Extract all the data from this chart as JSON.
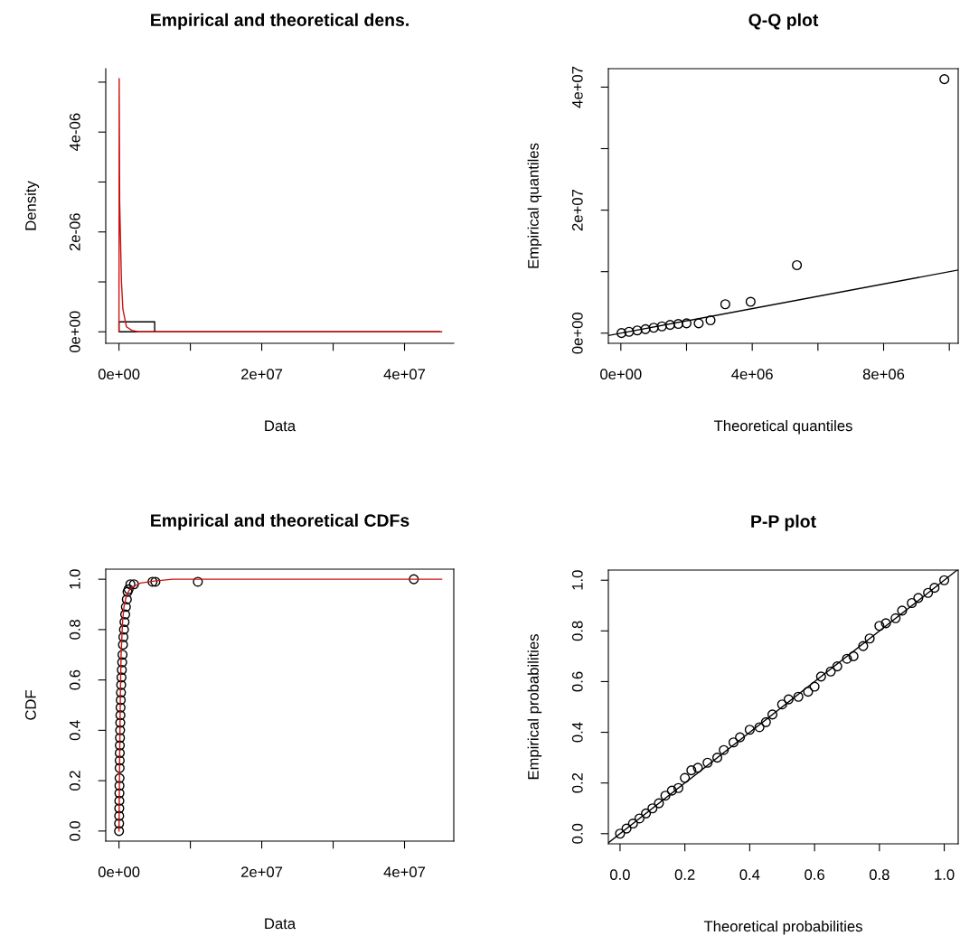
{
  "chart_data": [
    {
      "type": "histogram",
      "title": "Empirical and theoretical dens.",
      "xlabel": "Data",
      "ylabel": "Density",
      "bins": [
        0,
        5000000,
        10000000,
        15000000,
        20000000,
        25000000,
        30000000,
        35000000,
        40000000,
        45000000
      ],
      "values": [
        2e-07,
        0,
        0,
        0,
        0,
        0,
        0,
        0,
        0
      ],
      "color": "#000000",
      "series": [
        {
          "type": "line",
          "color": "#cc1111",
          "x": [
            0,
            30000,
            100000,
            350000,
            550000,
            1050000,
            1800000,
            2700000,
            45200000
          ],
          "values": [
            0,
            5.07e-06,
            2.6e-06,
            1e-06,
            4.5e-07,
            1e-07,
            3e-08,
            0,
            0
          ]
        }
      ],
      "xlim": [
        -1850000,
        46900000
      ],
      "ylim": [
        -2.3e-07,
        5.27e-06
      ],
      "xticks": [
        {
          "value": 0,
          "label": "0e+00"
        },
        {
          "value": 10000000,
          "label": null
        },
        {
          "value": 20000000,
          "label": "2e+07"
        },
        {
          "value": 30000000,
          "label": null
        },
        {
          "value": 40000000,
          "label": "4e+07"
        }
      ],
      "yticks": [
        {
          "value": 0,
          "label": "0e+00"
        },
        {
          "value": 1e-06,
          "label": null
        },
        {
          "value": 2e-06,
          "label": "2e-06"
        },
        {
          "value": 3e-06,
          "label": null
        },
        {
          "value": 4e-06,
          "label": "4e-06"
        },
        {
          "value": 5e-06,
          "label": null
        }
      ]
    },
    {
      "type": "scatter",
      "title": "Q-Q plot",
      "xlabel": "Theoretical quantiles",
      "ylabel": "Empirical quantiles",
      "series": [
        {
          "type": "scatter",
          "marker": "circle",
          "color": "#000000",
          "x": [
            20000,
            250000,
            500000,
            750000,
            1000000,
            1250000,
            1500000,
            1750000,
            2000000,
            2370000,
            2730000,
            3180000,
            3950000,
            5360000,
            9850000
          ],
          "values": [
            20000,
            220000,
            450000,
            650000,
            880000,
            1100000,
            1350000,
            1500000,
            1600000,
            1600000,
            2100000,
            4700000,
            5100000,
            11050000,
            41300000
          ]
        },
        {
          "type": "line",
          "color": "#000000",
          "x": [
            -380000,
            10270000
          ],
          "values": [
            -380000,
            10270000
          ]
        }
      ],
      "xlim": [
        -380000,
        10270000
      ],
      "ylim": [
        -1650000,
        43000000
      ],
      "xticks": [
        {
          "value": 0,
          "label": "0e+00"
        },
        {
          "value": 2000000,
          "label": null
        },
        {
          "value": 4000000,
          "label": "4e+06"
        },
        {
          "value": 6000000,
          "label": null
        },
        {
          "value": 8000000,
          "label": "8e+06"
        },
        {
          "value": 10000000,
          "label": null
        }
      ],
      "yticks": [
        {
          "value": 0,
          "label": "0e+00"
        },
        {
          "value": 10000000,
          "label": null
        },
        {
          "value": 20000000,
          "label": "2e+07"
        },
        {
          "value": 30000000,
          "label": null
        },
        {
          "value": 40000000,
          "label": "4e+07"
        }
      ]
    },
    {
      "type": "scatter",
      "title": "Empirical and theoretical CDFs",
      "xlabel": "Data",
      "ylabel": "CDF",
      "series": [
        {
          "type": "scatter",
          "marker": "circle",
          "color": "#000000",
          "x": [
            10000,
            20000,
            30000,
            40000,
            50000,
            60000,
            70000,
            80000,
            90000,
            100000,
            110000,
            120000,
            140000,
            160000,
            180000,
            200000,
            220000,
            250000,
            280000,
            310000,
            350000,
            400000,
            450000,
            500000,
            560000,
            620000,
            700000,
            780000,
            870000,
            970000,
            1100000,
            1200000,
            1350000,
            1600000,
            2100000,
            4700000,
            5100000,
            11050000,
            41300000
          ],
          "values": [
            0,
            0.03,
            0.06,
            0.09,
            0.12,
            0.15,
            0.18,
            0.21,
            0.25,
            0.28,
            0.31,
            0.34,
            0.37,
            0.4,
            0.43,
            0.46,
            0.49,
            0.52,
            0.55,
            0.58,
            0.61,
            0.64,
            0.67,
            0.7,
            0.74,
            0.77,
            0.8,
            0.83,
            0.86,
            0.89,
            0.92,
            0.95,
            0.96,
            0.98,
            0.98,
            0.99,
            0.99,
            0.99,
            1.0
          ]
        },
        {
          "type": "line",
          "color": "#cc1111",
          "x": [
            0,
            100000,
            200000,
            300000,
            500000,
            700000,
            1000000,
            1500000,
            2000000,
            3000000,
            5000000,
            7500000,
            45200000
          ],
          "values": [
            0,
            0.3,
            0.55,
            0.7,
            0.83,
            0.89,
            0.93,
            0.96,
            0.97,
            0.985,
            0.993,
            1.0,
            1.0
          ]
        }
      ],
      "xlim": [
        -1850000,
        46900000
      ],
      "ylim": [
        -0.04,
        1.04
      ],
      "xticks": [
        {
          "value": 0,
          "label": "0e+00"
        },
        {
          "value": 10000000,
          "label": null
        },
        {
          "value": 20000000,
          "label": "2e+07"
        },
        {
          "value": 30000000,
          "label": null
        },
        {
          "value": 40000000,
          "label": "4e+07"
        }
      ],
      "yticks": [
        {
          "value": 0,
          "label": "0.0"
        },
        0.2,
        0.4,
        0.6,
        0.8,
        {
          "value": 1,
          "label": "1.0"
        }
      ]
    },
    {
      "type": "scatter",
      "title": "P-P plot",
      "xlabel": "Theoretical probabilities",
      "ylabel": "Empirical probabilities",
      "series": [
        {
          "type": "scatter",
          "marker": "circle",
          "color": "#000000",
          "x": [
            0,
            0.02,
            0.04,
            0.06,
            0.08,
            0.1,
            0.12,
            0.14,
            0.16,
            0.18,
            0.2,
            0.22,
            0.24,
            0.27,
            0.3,
            0.32,
            0.35,
            0.37,
            0.4,
            0.43,
            0.45,
            0.47,
            0.5,
            0.52,
            0.55,
            0.58,
            0.6,
            0.62,
            0.65,
            0.67,
            0.7,
            0.72,
            0.75,
            0.77,
            0.8,
            0.82,
            0.85,
            0.87,
            0.9,
            0.92,
            0.95,
            0.97,
            1.0
          ],
          "values": [
            0,
            0.02,
            0.04,
            0.06,
            0.08,
            0.1,
            0.12,
            0.15,
            0.17,
            0.18,
            0.22,
            0.25,
            0.26,
            0.28,
            0.3,
            0.33,
            0.36,
            0.38,
            0.41,
            0.42,
            0.44,
            0.47,
            0.51,
            0.53,
            0.54,
            0.56,
            0.58,
            0.62,
            0.64,
            0.66,
            0.69,
            0.7,
            0.74,
            0.77,
            0.82,
            0.83,
            0.85,
            0.88,
            0.91,
            0.93,
            0.95,
            0.97,
            1.0
          ]
        },
        {
          "type": "line",
          "color": "#000000",
          "x": [
            -0.036,
            1.04
          ],
          "values": [
            -0.036,
            1.04
          ]
        }
      ],
      "xlim": [
        -0.036,
        1.043
      ],
      "ylim": [
        -0.04,
        1.04
      ],
      "xticks": [
        {
          "value": 0,
          "label": "0.0"
        },
        0.2,
        0.4,
        0.6,
        0.8,
        {
          "value": 1,
          "label": "1.0"
        }
      ],
      "yticks": [
        {
          "value": 0,
          "label": "0.0"
        },
        0.2,
        0.4,
        0.6,
        0.8,
        {
          "value": 1,
          "label": "1.0"
        }
      ]
    }
  ]
}
